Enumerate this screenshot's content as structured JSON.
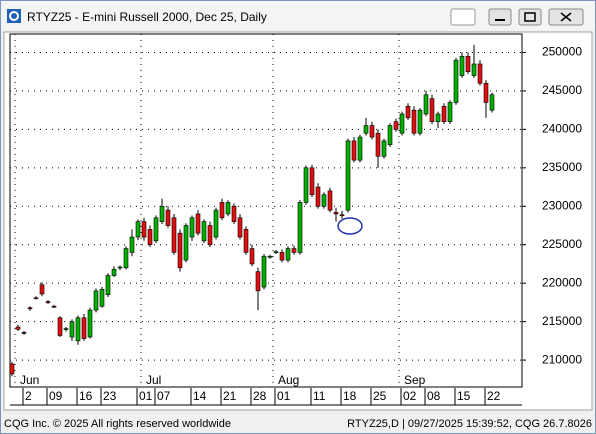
{
  "chart_data": {
    "type": "candlestick",
    "title": "RTYZ25 - E-mini Russell 2000, Dec 25, Daily",
    "categories": [
      null,
      null,
      null,
      "2",
      null,
      null,
      null,
      "09",
      null,
      null,
      null,
      null,
      "16",
      null,
      null,
      null,
      "23",
      null,
      null,
      null,
      null,
      null,
      "01",
      null,
      null,
      "07",
      null,
      null,
      null,
      null,
      null,
      "14",
      null,
      null,
      null,
      null,
      "21",
      null,
      null,
      null,
      null,
      "28",
      null,
      null,
      null,
      "01",
      null,
      null,
      null,
      null,
      null,
      "11",
      null,
      null,
      null,
      null,
      "18",
      null,
      null,
      null,
      null,
      "25",
      null,
      null,
      null,
      null,
      "02",
      null,
      null,
      null,
      "08",
      null,
      null,
      null,
      null,
      "15",
      null,
      null,
      null,
      null,
      "22"
    ],
    "months": [
      null,
      "Jun",
      null,
      null,
      null,
      null,
      null,
      null,
      null,
      null,
      null,
      null,
      null,
      null,
      null,
      null,
      null,
      null,
      null,
      null,
      null,
      null,
      "Jul",
      null,
      null,
      null,
      null,
      null,
      null,
      null,
      null,
      null,
      null,
      null,
      null,
      null,
      null,
      null,
      null,
      null,
      null,
      null,
      null,
      null,
      "Aug",
      null,
      null,
      null,
      null,
      null,
      null,
      null,
      null,
      null,
      null,
      null,
      null,
      null,
      null,
      null,
      null,
      null,
      null,
      null,
      null,
      "Sep",
      null,
      null,
      null,
      null,
      null,
      null,
      null,
      null,
      null,
      null,
      null,
      null,
      null,
      null,
      null
    ],
    "open": [
      209500,
      214300,
      213600,
      216800,
      218100,
      219800,
      217600,
      217000,
      215500,
      214000,
      213000,
      212500,
      215500,
      213000,
      216500,
      217000,
      218500,
      221000,
      222000,
      222000,
      224000,
      226000,
      228000,
      227000,
      225500,
      228000,
      229500,
      228500,
      226500,
      223000,
      226000,
      229000,
      225500,
      227500,
      226000,
      230500,
      229000,
      230000,
      228500,
      227000,
      224500,
      221500,
      219500,
      223400,
      224000,
      224000,
      223000,
      224500,
      224000,
      230500,
      235000,
      232500,
      230000,
      232000,
      229200,
      228900,
      229500,
      238500,
      236000,
      239500,
      240500,
      239500,
      236500,
      238000,
      241000,
      239500,
      243000,
      242500,
      239500,
      242000,
      244000,
      241000,
      243000,
      241000,
      243500,
      247000,
      249500,
      247000,
      248500,
      246000,
      242500
    ],
    "high": [
      209800,
      214600,
      213800,
      217000,
      218300,
      220100,
      217800,
      217200,
      215700,
      214300,
      215300,
      215800,
      216000,
      216800,
      219300,
      219500,
      221300,
      222200,
      222300,
      224800,
      227000,
      228300,
      228500,
      227500,
      228800,
      231000,
      230000,
      229000,
      227000,
      227800,
      228800,
      229500,
      228300,
      228000,
      229800,
      231000,
      230800,
      230400,
      229000,
      227400,
      225000,
      222000,
      223800,
      223700,
      224300,
      224400,
      224800,
      224900,
      230800,
      235300,
      235400,
      233000,
      231800,
      232400,
      229800,
      229400,
      238800,
      239000,
      239300,
      241500,
      241000,
      240000,
      238800,
      240800,
      241400,
      242300,
      243400,
      243000,
      242800,
      245000,
      244500,
      242300,
      243400,
      243800,
      249300,
      250000,
      250000,
      251000,
      249000,
      246400,
      244800
    ],
    "low": [
      207900,
      213800,
      213300,
      216400,
      217900,
      218300,
      217300,
      216800,
      213000,
      213700,
      212500,
      212000,
      212500,
      212800,
      216200,
      216800,
      218200,
      220800,
      221700,
      221800,
      223500,
      225600,
      225500,
      224700,
      225200,
      227700,
      227200,
      223700,
      221500,
      222700,
      225500,
      226200,
      225200,
      224700,
      225700,
      228200,
      228700,
      227700,
      225700,
      223700,
      222200,
      216500,
      219200,
      223200,
      223800,
      222700,
      222700,
      223700,
      223700,
      230200,
      231200,
      229700,
      229700,
      229200,
      228000,
      228400,
      229200,
      235700,
      235700,
      239200,
      238700,
      235000,
      236200,
      237700,
      239700,
      239200,
      241200,
      239200,
      239200,
      241700,
      240700,
      240200,
      240700,
      240700,
      243200,
      246700,
      247200,
      246700,
      245700,
      241500,
      242200
    ],
    "close": [
      208200,
      214000,
      213500,
      216700,
      218000,
      218600,
      217500,
      216900,
      213200,
      214100,
      215000,
      215500,
      212800,
      216500,
      219000,
      219200,
      221000,
      221800,
      222100,
      224500,
      226000,
      228000,
      226000,
      225000,
      228500,
      230000,
      227500,
      224000,
      222000,
      227500,
      228500,
      226500,
      228000,
      225000,
      229500,
      228500,
      230500,
      228000,
      226000,
      224000,
      222500,
      219000,
      223500,
      223500,
      224100,
      223000,
      224500,
      224000,
      230500,
      235000,
      231500,
      230000,
      231500,
      229500,
      229000,
      228800,
      238500,
      236000,
      239000,
      240500,
      239000,
      236500,
      238500,
      240500,
      240000,
      242000,
      241500,
      239500,
      242500,
      244500,
      241000,
      242000,
      241000,
      243500,
      249000,
      249500,
      247500,
      248500,
      246000,
      243500,
      244500
    ],
    "up_color": "#00b000",
    "down_color": "#e01010",
    "ylim": [
      206500,
      252400
    ],
    "yticks": [
      210000,
      215000,
      220000,
      225000,
      230000,
      235000,
      240000,
      245000,
      250000
    ],
    "grid": true
  },
  "status_bar": {
    "left": "CQG Inc. © 2025 All rights reserved worldwide",
    "right": "RTYZ25,D | 09/27/2025 15:39:52, CQG 26.7.8026"
  }
}
